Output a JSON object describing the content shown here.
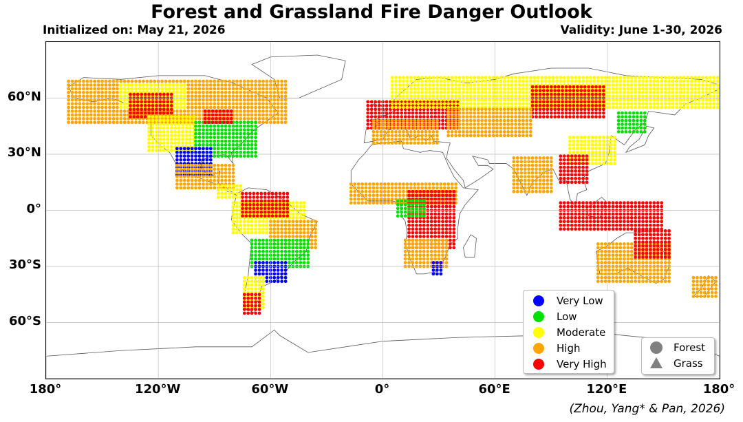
{
  "header": {
    "title": "Forest and Grassland Fire Danger Outlook",
    "initialized": "Initialized on: May 21, 2026",
    "validity": "Validity: June 1-30, 2026"
  },
  "map": {
    "projection": "equirectangular",
    "lon_range": [
      -180,
      180
    ],
    "lat_range": [
      -90,
      90
    ],
    "lat_ticks": [
      {
        "lat": 60,
        "label": "60°N"
      },
      {
        "lat": 30,
        "label": "30°N"
      },
      {
        "lat": 0,
        "label": "0°"
      },
      {
        "lat": -30,
        "label": "30°S"
      },
      {
        "lat": -60,
        "label": "60°S"
      }
    ],
    "lon_ticks": [
      {
        "lon": -180,
        "label": "180°"
      },
      {
        "lon": -120,
        "label": "120°W"
      },
      {
        "lon": -60,
        "label": "60°W"
      },
      {
        "lon": 0,
        "label": "0°"
      },
      {
        "lon": 60,
        "label": "60°E"
      },
      {
        "lon": 120,
        "label": "120°E"
      },
      {
        "lon": 180,
        "label": "180°"
      }
    ],
    "gridlines": true,
    "danger_colors": {
      "very_low": "#0000ff",
      "low": "#00e000",
      "moderate": "#ffff00",
      "high": "#ffa500",
      "very_high": "#ff0000"
    },
    "danger_regions": [
      {
        "level": "high",
        "lon": [
          -168,
          -52
        ],
        "lat": [
          47,
          70
        ]
      },
      {
        "level": "moderate",
        "lon": [
          -140,
          -105
        ],
        "lat": [
          55,
          68
        ]
      },
      {
        "level": "very_high",
        "lon": [
          -135,
          -112
        ],
        "lat": [
          50,
          62
        ]
      },
      {
        "level": "moderate",
        "lon": [
          -125,
          -100
        ],
        "lat": [
          32,
          50
        ]
      },
      {
        "level": "low",
        "lon": [
          -100,
          -68
        ],
        "lat": [
          29,
          47
        ]
      },
      {
        "level": "very_low",
        "lon": [
          -110,
          -92
        ],
        "lat": [
          19,
          33
        ]
      },
      {
        "level": "very_high",
        "lon": [
          -95,
          -80
        ],
        "lat": [
          47,
          54
        ]
      },
      {
        "level": "high",
        "lon": [
          -110,
          -80
        ],
        "lat": [
          12,
          24
        ]
      },
      {
        "level": "moderate",
        "lon": [
          -88,
          -76
        ],
        "lat": [
          7,
          14
        ]
      },
      {
        "level": "moderate",
        "lon": [
          -80,
          -42
        ],
        "lat": [
          -12,
          5
        ]
      },
      {
        "level": "very_high",
        "lon": [
          -75,
          -50
        ],
        "lat": [
          -3,
          10
        ]
      },
      {
        "level": "high",
        "lon": [
          -60,
          -36
        ],
        "lat": [
          -20,
          -5
        ]
      },
      {
        "level": "low",
        "lon": [
          -70,
          -40
        ],
        "lat": [
          -30,
          -15
        ]
      },
      {
        "level": "very_low",
        "lon": [
          -68,
          -52
        ],
        "lat": [
          -38,
          -28
        ]
      },
      {
        "level": "moderate",
        "lon": [
          -74,
          -64
        ],
        "lat": [
          -52,
          -36
        ]
      },
      {
        "level": "very_high",
        "lon": [
          -74,
          -66
        ],
        "lat": [
          -55,
          -45
        ]
      },
      {
        "level": "very_high",
        "lon": [
          -8,
          40
        ],
        "lat": [
          44,
          58
        ]
      },
      {
        "level": "high",
        "lon": [
          -5,
          30
        ],
        "lat": [
          36,
          48
        ]
      },
      {
        "level": "moderate",
        "lon": [
          5,
          180
        ],
        "lat": [
          55,
          72
        ]
      },
      {
        "level": "very_high",
        "lon": [
          80,
          118
        ],
        "lat": [
          50,
          67
        ]
      },
      {
        "level": "high",
        "lon": [
          35,
          80
        ],
        "lat": [
          40,
          55
        ]
      },
      {
        "level": "low",
        "lon": [
          126,
          140
        ],
        "lat": [
          42,
          53
        ]
      },
      {
        "level": "moderate",
        "lon": [
          100,
          125
        ],
        "lat": [
          25,
          40
        ]
      },
      {
        "level": "very_high",
        "lon": [
          95,
          110
        ],
        "lat": [
          15,
          30
        ]
      },
      {
        "level": "high",
        "lon": [
          70,
          90
        ],
        "lat": [
          10,
          28
        ]
      },
      {
        "level": "high",
        "lon": [
          -17,
          40
        ],
        "lat": [
          4,
          14
        ]
      },
      {
        "level": "very_high",
        "lon": [
          14,
          38
        ],
        "lat": [
          -20,
          10
        ]
      },
      {
        "level": "low",
        "lon": [
          8,
          22
        ],
        "lat": [
          -3,
          5
        ]
      },
      {
        "level": "high",
        "lon": [
          12,
          35
        ],
        "lat": [
          -30,
          -15
        ]
      },
      {
        "level": "very_low",
        "lon": [
          27,
          32
        ],
        "lat": [
          -34,
          -28
        ]
      },
      {
        "level": "very_high",
        "lon": [
          95,
          150
        ],
        "lat": [
          -10,
          5
        ]
      },
      {
        "level": "high",
        "lon": [
          115,
          153
        ],
        "lat": [
          -38,
          -18
        ]
      },
      {
        "level": "very_high",
        "lon": [
          135,
          153
        ],
        "lat": [
          -25,
          -10
        ]
      },
      {
        "level": "high",
        "lon": [
          166,
          178
        ],
        "lat": [
          -46,
          -36
        ]
      }
    ]
  },
  "legend_danger": {
    "items": [
      {
        "label": "Very Low",
        "color": "#0000ff"
      },
      {
        "label": "Low",
        "color": "#00e000"
      },
      {
        "label": "Moderate",
        "color": "#ffff00"
      },
      {
        "label": "High",
        "color": "#ffa500"
      },
      {
        "label": "Very High",
        "color": "#ff0000"
      }
    ]
  },
  "legend_type": {
    "items": [
      {
        "label": "Forest",
        "shape": "circle"
      },
      {
        "label": "Grass",
        "shape": "triangle"
      }
    ]
  },
  "footer": {
    "credit": "(Zhou, Yang* & Pan, 2026)"
  }
}
